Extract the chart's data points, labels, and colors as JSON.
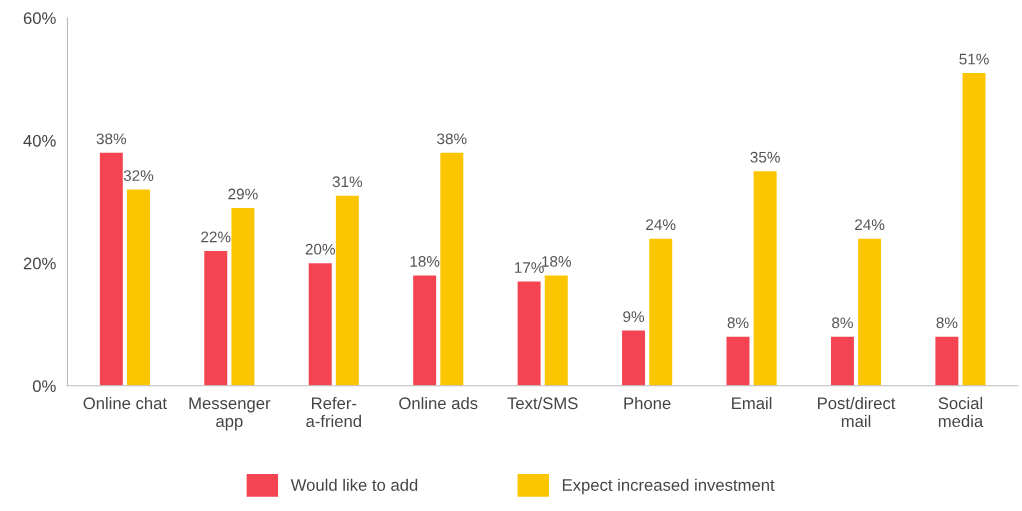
{
  "chart_data": {
    "type": "bar",
    "categories": [
      "Online chat",
      "Messenger\napp",
      "Refer-\na-friend",
      "Online ads",
      "Text/SMS",
      "Phone",
      "Email",
      "Post/direct\nmail",
      "Social\nmedia"
    ],
    "series": [
      {
        "name": "Would like to add",
        "color": "#f44452",
        "values": [
          38,
          22,
          20,
          18,
          17,
          9,
          8,
          8,
          8
        ],
        "value_labels": [
          "38%",
          "22%",
          "20%",
          "18%",
          "17%",
          "9%",
          "8%",
          "8%",
          "8%"
        ]
      },
      {
        "name": "Expect increased investment",
        "color": "#fbc600",
        "values": [
          32,
          29,
          31,
          38,
          18,
          24,
          35,
          24,
          51
        ],
        "value_labels": [
          "32%",
          "29%",
          "31%",
          "38%",
          "18%",
          "24%",
          "35%",
          "24%",
          "51%"
        ]
      }
    ],
    "ylim": [
      0,
      60
    ],
    "yticks": [
      {
        "value": 0,
        "label": "0%"
      },
      {
        "value": 20,
        "label": "20%"
      },
      {
        "value": 40,
        "label": "40%"
      },
      {
        "value": 60,
        "label": "60%"
      }
    ],
    "grid": false,
    "legend": "bottom"
  }
}
